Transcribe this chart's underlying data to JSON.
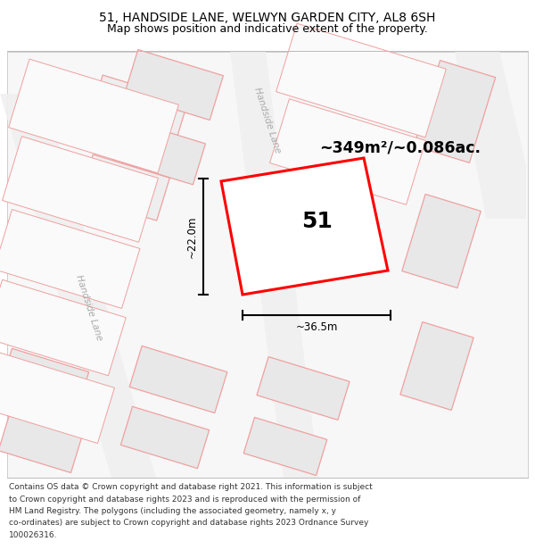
{
  "title_line1": "51, HANDSIDE LANE, WELWYN GARDEN CITY, AL8 6SH",
  "title_line2": "Map shows position and indicative extent of the property.",
  "footer_lines": [
    "Contains OS data © Crown copyright and database right 2021. This information is subject",
    "to Crown copyright and database rights 2023 and is reproduced with the permission of",
    "HM Land Registry. The polygons (including the associated geometry, namely x, y",
    "co-ordinates) are subject to Crown copyright and database rights 2023 Ordnance Survey",
    "100026316."
  ],
  "area_label": "~349m²/~0.086ac.",
  "number_label": "51",
  "dim_h": "~22.0m",
  "dim_w": "~36.5m",
  "road_label_diag": "Handside Lane",
  "road_label_left": "Handside Lane",
  "bg_color": "#ffffff",
  "highlight_color": "#ff0000",
  "text_color": "#000000",
  "bld_fill": "#e8e8e8",
  "bld_edge_pink": "#f0a0a0",
  "bld_edge_darkpink": "#e08080",
  "plot_bg": "#ffffff"
}
